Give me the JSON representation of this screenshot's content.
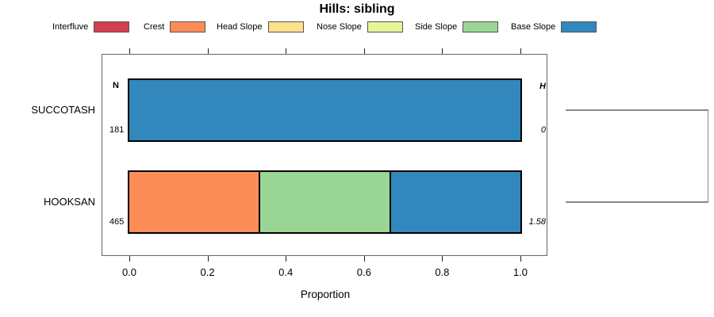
{
  "title": "Hills: sibling",
  "legend": {
    "items": [
      {
        "label": "Interfluve",
        "color": "#D53E4F"
      },
      {
        "label": "Crest",
        "color": "#FC8D59"
      },
      {
        "label": "Head Slope",
        "color": "#FEE08B"
      },
      {
        "label": "Nose Slope",
        "color": "#E6F598"
      },
      {
        "label": "Side Slope",
        "color": "#99D594"
      },
      {
        "label": "Base Slope",
        "color": "#3288BD"
      }
    ]
  },
  "x_axis": {
    "label": "Proportion",
    "tick_labels": [
      "0.0",
      "0.2",
      "0.4",
      "0.6",
      "0.8",
      "1.0"
    ]
  },
  "annotations": {
    "n_header": "N",
    "h_header": "H"
  },
  "chart_data": {
    "type": "bar",
    "orientation": "horizontal",
    "stacked": true,
    "title": "Hills: sibling",
    "xlabel": "Proportion",
    "xlim": [
      0,
      1
    ],
    "xticks": [
      0,
      0.2,
      0.4,
      0.6,
      0.8,
      1.0
    ],
    "grid": false,
    "legend_position": "top",
    "legend_entries": [
      "Interfluve",
      "Crest",
      "Head Slope",
      "Nose Slope",
      "Side Slope",
      "Base Slope"
    ],
    "class_colors": {
      "Interfluve": "#D53E4F",
      "Crest": "#FC8D59",
      "Head Slope": "#FEE08B",
      "Nose Slope": "#E6F598",
      "Side Slope": "#99D594",
      "Base Slope": "#3288BD"
    },
    "categories": [
      "SUCCOTASH",
      "HOOKSAN"
    ],
    "rows": [
      {
        "category": "SUCCOTASH",
        "n": "181",
        "h": "0",
        "segments": [
          {
            "class": "Base Slope",
            "proportion": 1.0
          }
        ]
      },
      {
        "category": "HOOKSAN",
        "n": "465",
        "h": "1.58",
        "segments": [
          {
            "class": "Crest",
            "proportion": 0.333
          },
          {
            "class": "Side Slope",
            "proportion": 0.333
          },
          {
            "class": "Base Slope",
            "proportion": 0.334
          }
        ]
      }
    ],
    "dendrogram": {
      "side": "right",
      "joins": [
        {
          "members": [
            "SUCCOTASH",
            "HOOKSAN"
          ]
        }
      ]
    }
  }
}
